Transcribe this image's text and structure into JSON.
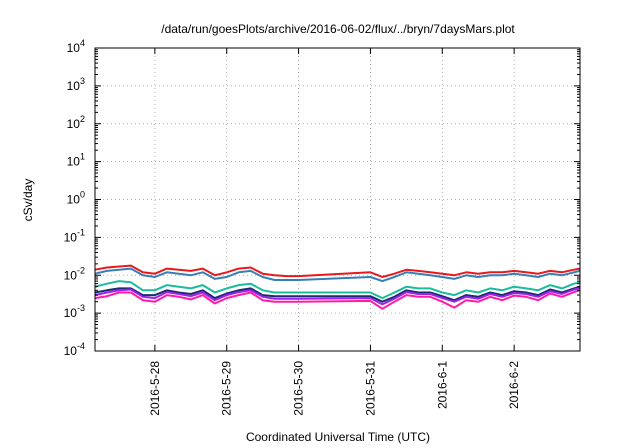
{
  "chart_data": {
    "type": "line",
    "title": "/data/run/goesPlots/archive/2016-06-02/flux/../bryn/7daysMars.plot",
    "xlabel": "Coordinated Universal Time (UTC)",
    "ylabel": "cSv/day",
    "y_scale": "log",
    "ylim": [
      0.0001,
      10000
    ],
    "xlim": [
      "2016-05-27 04:00",
      "2016-06-02 22:00"
    ],
    "x_ticks": [
      "2016-05-28",
      "2016-05-29",
      "2016-05-30",
      "2016-05-31",
      "2016-06-01",
      "2016-06-02"
    ],
    "x_tick_labels": [
      "2016-5-28",
      "2016-5-29",
      "2016-5-30",
      "2016-5-31",
      "2016-6-1",
      "2016-6-2"
    ],
    "y_ticks": [
      {
        "base": "10",
        "exp": "-4"
      },
      {
        "base": "10",
        "exp": "-3"
      },
      {
        "base": "10",
        "exp": "-2"
      },
      {
        "base": "10",
        "exp": "-1"
      },
      {
        "base": "10",
        "exp": "0"
      },
      {
        "base": "10",
        "exp": "1"
      },
      {
        "base": "10",
        "exp": "2"
      },
      {
        "base": "10",
        "exp": "3"
      },
      {
        "base": "10",
        "exp": "4"
      }
    ],
    "grid": true,
    "legend": "none",
    "x": [
      "2016-05-27 04:00",
      "2016-05-27 08:00",
      "2016-05-27 12:00",
      "2016-05-27 16:00",
      "2016-05-27 20:00",
      "2016-05-28 00:00",
      "2016-05-28 04:00",
      "2016-05-28 08:00",
      "2016-05-28 12:00",
      "2016-05-28 16:00",
      "2016-05-28 20:00",
      "2016-05-29 00:00",
      "2016-05-29 04:00",
      "2016-05-29 08:00",
      "2016-05-29 12:00",
      "2016-05-29 16:00",
      "2016-05-29 20:00",
      "2016-05-30 00:00",
      "2016-05-31 00:00",
      "2016-05-31 04:00",
      "2016-05-31 08:00",
      "2016-05-31 12:00",
      "2016-05-31 16:00",
      "2016-05-31 20:00",
      "2016-06-01 00:00",
      "2016-06-01 04:00",
      "2016-06-01 08:00",
      "2016-06-01 12:00",
      "2016-06-01 16:00",
      "2016-06-01 20:00",
      "2016-06-02 00:00",
      "2016-06-02 04:00",
      "2016-06-02 08:00",
      "2016-06-02 12:00",
      "2016-06-02 16:00",
      "2016-06-02 20:00",
      "2016-06-02 22:00"
    ],
    "series": [
      {
        "color": "#e41a1c",
        "values": [
          0.014,
          0.016,
          0.017,
          0.018,
          0.012,
          0.011,
          0.015,
          0.014,
          0.013,
          0.015,
          0.01,
          0.012,
          0.015,
          0.016,
          0.011,
          0.01,
          0.0095,
          0.0095,
          0.012,
          0.009,
          0.011,
          0.014,
          0.013,
          0.012,
          0.011,
          0.01,
          0.012,
          0.011,
          0.012,
          0.012,
          0.013,
          0.012,
          0.011,
          0.013,
          0.012,
          0.014,
          0.015
        ]
      },
      {
        "color": "#377eb8",
        "values": [
          0.011,
          0.013,
          0.014,
          0.015,
          0.01,
          0.009,
          0.012,
          0.011,
          0.01,
          0.012,
          0.008,
          0.009,
          0.012,
          0.013,
          0.009,
          0.0075,
          0.0075,
          0.0075,
          0.009,
          0.007,
          0.009,
          0.012,
          0.011,
          0.01,
          0.009,
          0.008,
          0.01,
          0.009,
          0.01,
          0.01,
          0.011,
          0.01,
          0.009,
          0.011,
          0.01,
          0.012,
          0.013
        ]
      },
      {
        "color": "#1abc9c",
        "values": [
          0.005,
          0.006,
          0.007,
          0.0065,
          0.004,
          0.004,
          0.0055,
          0.005,
          0.0045,
          0.0055,
          0.0035,
          0.0045,
          0.0055,
          0.006,
          0.004,
          0.0035,
          0.0035,
          0.0035,
          0.0035,
          0.0025,
          0.0035,
          0.005,
          0.0045,
          0.0045,
          0.0035,
          0.003,
          0.004,
          0.0035,
          0.0045,
          0.004,
          0.005,
          0.0045,
          0.004,
          0.0055,
          0.0045,
          0.006,
          0.0065
        ]
      },
      {
        "color": "#1a2a6c",
        "values": [
          0.0035,
          0.004,
          0.0045,
          0.0045,
          0.003,
          0.003,
          0.004,
          0.0035,
          0.0032,
          0.004,
          0.0025,
          0.0033,
          0.004,
          0.0045,
          0.003,
          0.0028,
          0.0028,
          0.0028,
          0.0028,
          0.002,
          0.0027,
          0.004,
          0.0035,
          0.0035,
          0.0028,
          0.0022,
          0.003,
          0.0027,
          0.0035,
          0.003,
          0.0038,
          0.0035,
          0.003,
          0.0042,
          0.0035,
          0.0045,
          0.005
        ]
      },
      {
        "color": "#a020f0",
        "values": [
          0.003,
          0.0035,
          0.004,
          0.0042,
          0.0027,
          0.0025,
          0.0036,
          0.0032,
          0.0028,
          0.0035,
          0.0022,
          0.003,
          0.0036,
          0.004,
          0.0027,
          0.0024,
          0.0024,
          0.0024,
          0.0025,
          0.0017,
          0.0024,
          0.0036,
          0.0032,
          0.0032,
          0.0025,
          0.002,
          0.0027,
          0.0024,
          0.0032,
          0.0027,
          0.0034,
          0.0032,
          0.0027,
          0.0038,
          0.0032,
          0.0042,
          0.0046
        ]
      },
      {
        "color": "#ff1aa8",
        "values": [
          0.0025,
          0.0028,
          0.0035,
          0.0035,
          0.0022,
          0.002,
          0.003,
          0.0027,
          0.0023,
          0.003,
          0.0018,
          0.0025,
          0.003,
          0.0035,
          0.0022,
          0.002,
          0.002,
          0.002,
          0.0021,
          0.0013,
          0.002,
          0.003,
          0.0027,
          0.0027,
          0.002,
          0.0014,
          0.0022,
          0.002,
          0.0027,
          0.0022,
          0.0029,
          0.0027,
          0.0022,
          0.0033,
          0.0027,
          0.0036,
          0.004
        ]
      }
    ]
  }
}
